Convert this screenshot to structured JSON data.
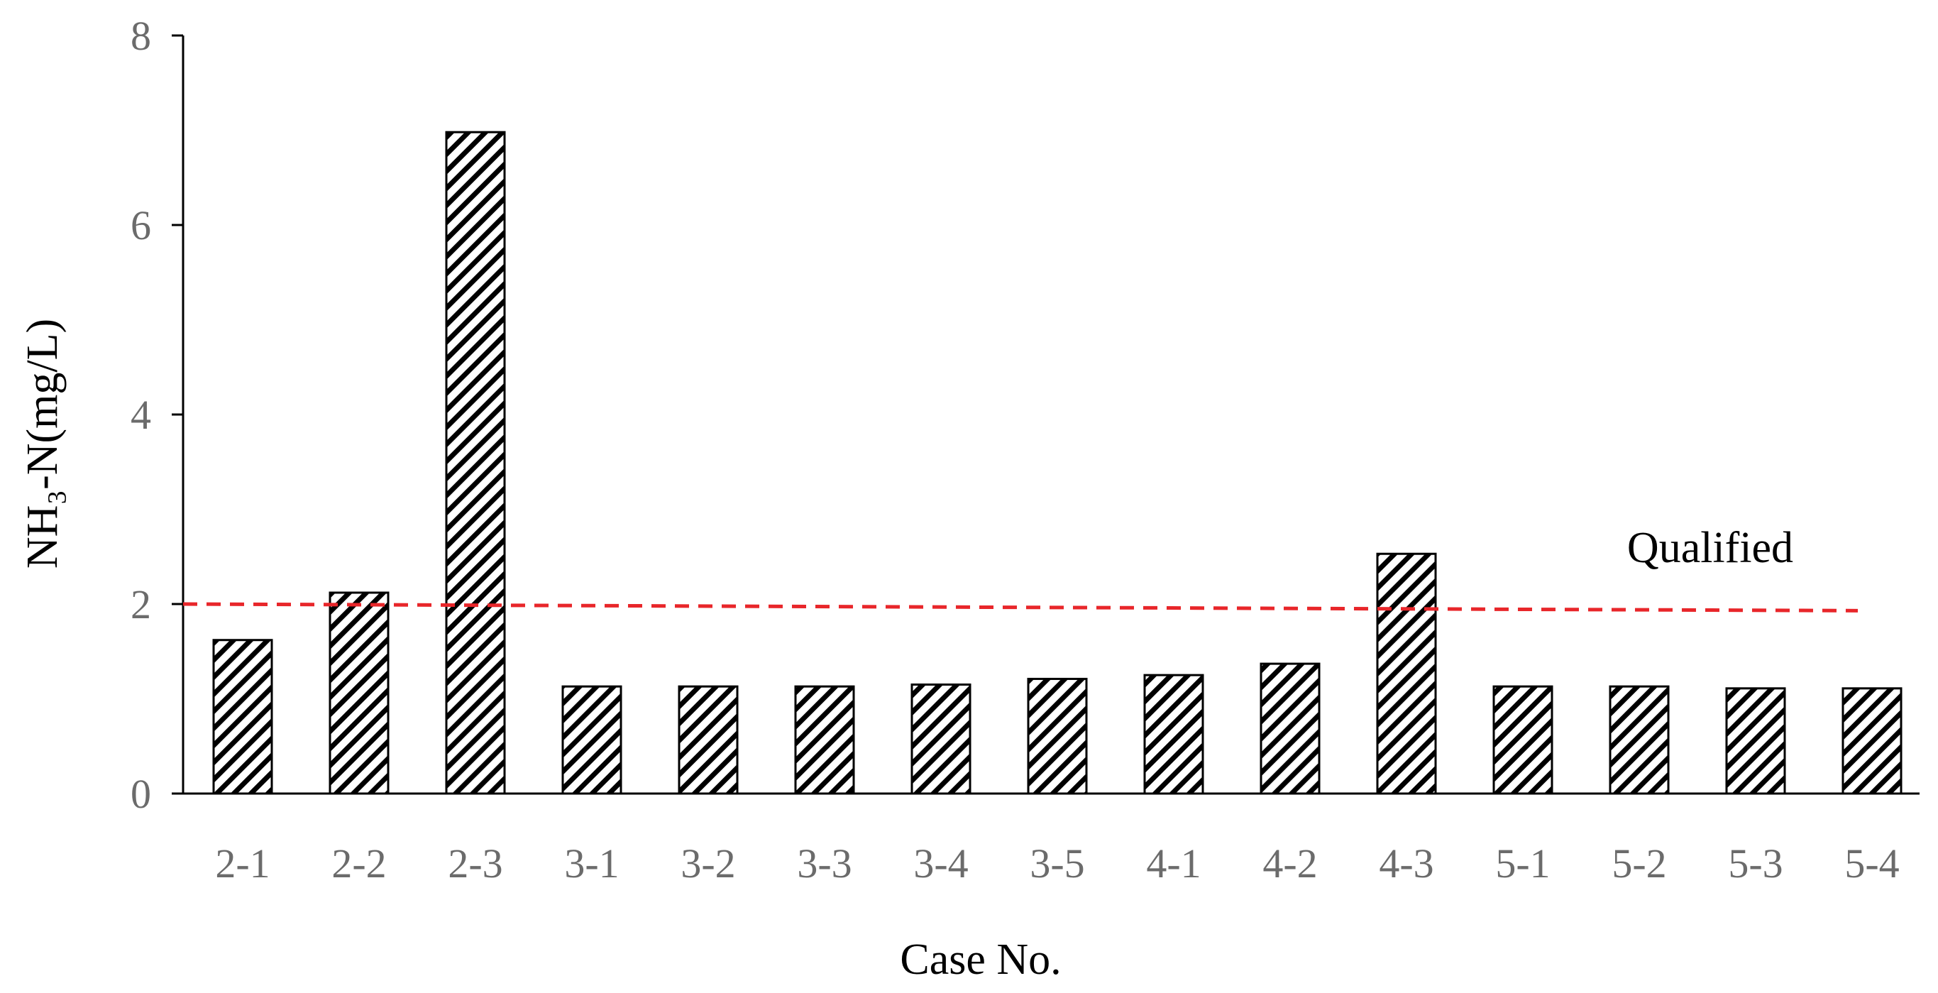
{
  "chart_data": {
    "type": "bar",
    "categories": [
      "2-1",
      "2-2",
      "2-3",
      "3-1",
      "3-2",
      "3-3",
      "3-4",
      "3-5",
      "4-1",
      "4-2",
      "4-3",
      "5-1",
      "5-2",
      "5-3",
      "5-4"
    ],
    "values": [
      1.62,
      2.12,
      6.98,
      1.13,
      1.13,
      1.13,
      1.15,
      1.21,
      1.25,
      1.37,
      2.53,
      1.13,
      1.13,
      1.11,
      1.11
    ],
    "xlabel": "Case No.",
    "ylabel": "NH₃-N(mg/L)",
    "ylim": [
      0,
      8
    ],
    "yticks": [
      0,
      2,
      4,
      6,
      8
    ],
    "bar_fill": "diagonal-hatch",
    "grid": false,
    "reference_line": {
      "label": "Qualified",
      "y_start": 2.0,
      "y_end": 1.93,
      "color": "#e8262a",
      "style": "dashed"
    }
  }
}
